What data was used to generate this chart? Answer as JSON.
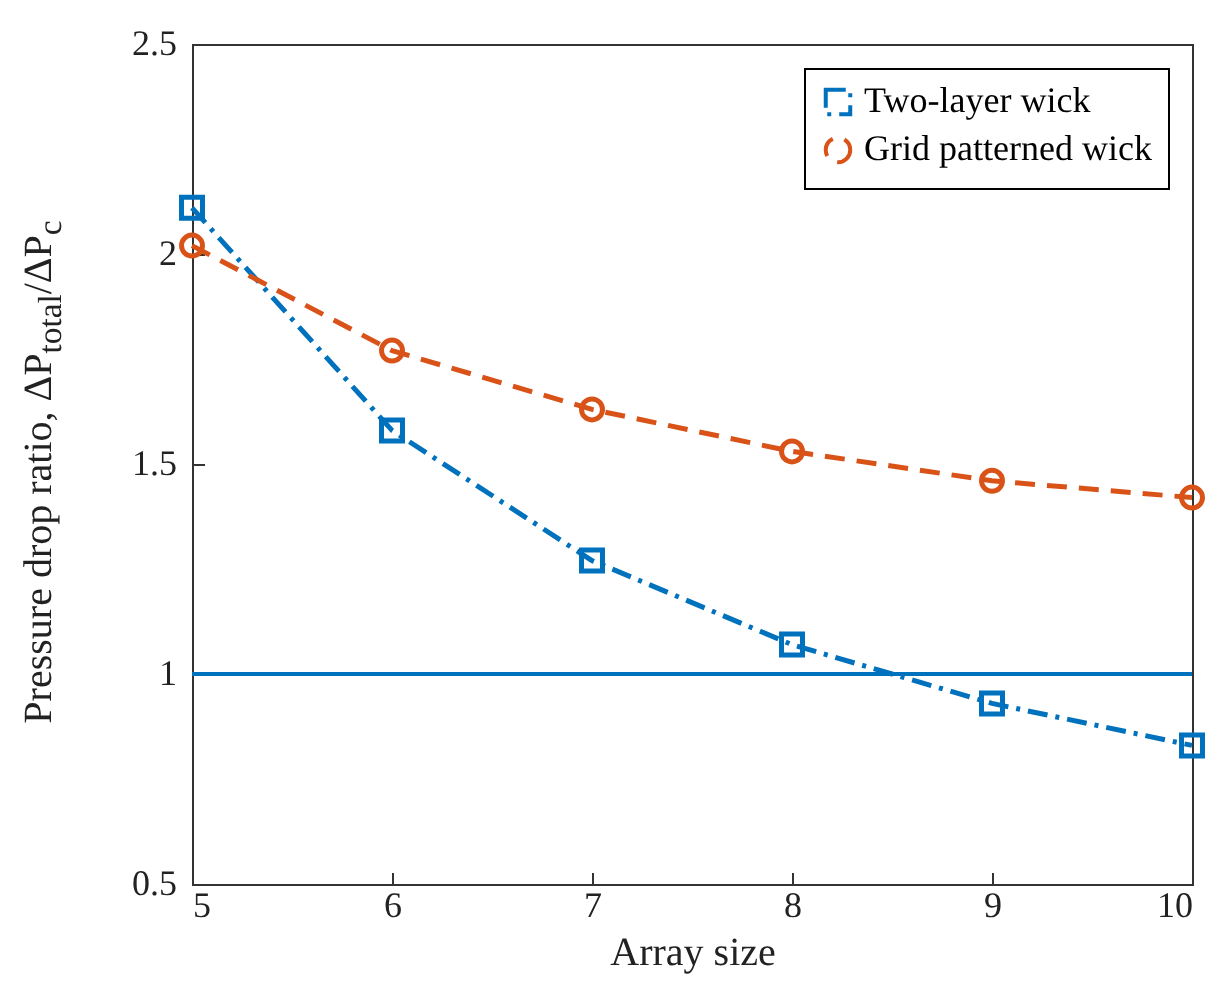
{
  "chart_data": {
    "type": "line",
    "xlabel": "Array size",
    "ylabel": "Pressure drop ratio, ΔP$_{total}$/ΔP$_{c}$",
    "x": [
      5,
      6,
      7,
      8,
      9,
      10
    ],
    "series": [
      {
        "name": "Two-layer wick",
        "color": "#0072bd",
        "marker": "square",
        "line_style": "dashdot",
        "values": [
          2.11,
          1.58,
          1.27,
          1.07,
          0.93,
          0.83
        ]
      },
      {
        "name": "Grid patterned wick",
        "color": "#d95319",
        "marker": "circle",
        "line_style": "dashed",
        "values": [
          2.02,
          1.77,
          1.63,
          1.53,
          1.46,
          1.42
        ]
      }
    ],
    "ref_lines": [
      {
        "axis": "y",
        "value": 1,
        "color": "#0072bd",
        "line_style": "solid"
      }
    ],
    "xlim": [
      5,
      10
    ],
    "xticks": [
      5,
      6,
      7,
      8,
      9,
      10
    ],
    "ylim": [
      0.5,
      2.5
    ],
    "yticks": [
      0.5,
      1,
      1.5,
      2,
      2.5
    ],
    "grid": false,
    "legend": "top right"
  }
}
